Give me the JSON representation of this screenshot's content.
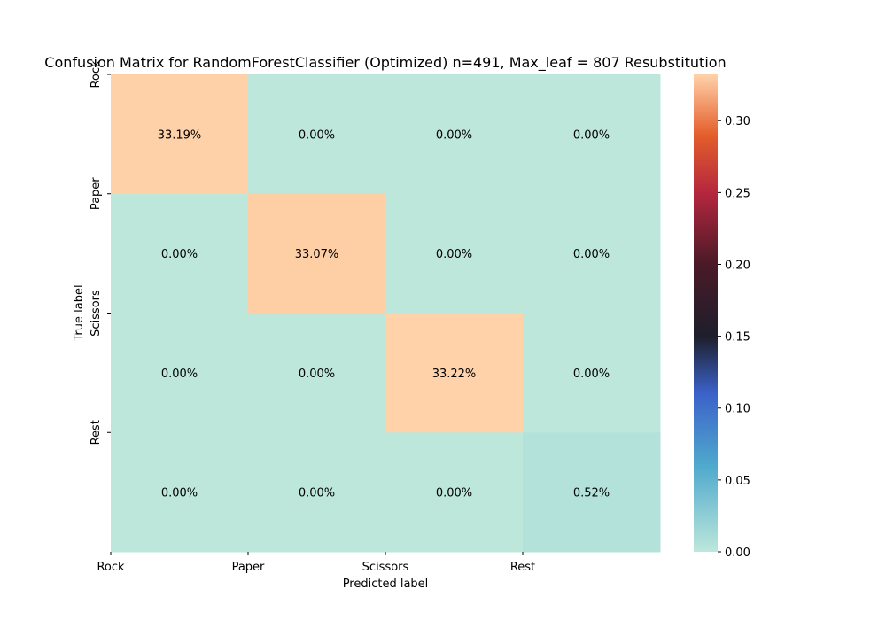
{
  "chart_data": {
    "type": "heatmap",
    "title": "Confusion Matrix for RandomForestClassifier (Optimized) n=491, Max_leaf = 807 Resubstitution",
    "xlabel": "Predicted label",
    "ylabel": "True label",
    "x_categories": [
      "Rock",
      "Paper",
      "Scissors",
      "Rest"
    ],
    "y_categories": [
      "Rock",
      "Paper",
      "Scissors",
      "Rest"
    ],
    "values": [
      [
        0.3319,
        0.0,
        0.0,
        0.0
      ],
      [
        0.0,
        0.3307,
        0.0,
        0.0
      ],
      [
        0.0,
        0.0,
        0.3322,
        0.0
      ],
      [
        0.0,
        0.0,
        0.0,
        0.0052
      ]
    ],
    "cell_labels": [
      [
        "33.19%",
        "0.00%",
        "0.00%",
        "0.00%"
      ],
      [
        "0.00%",
        "33.07%",
        "0.00%",
        "0.00%"
      ],
      [
        "0.00%",
        "0.00%",
        "33.22%",
        "0.00%"
      ],
      [
        "0.00%",
        "0.00%",
        "0.00%",
        "0.52%"
      ]
    ],
    "colorbar": {
      "range": [
        0.0,
        0.3322
      ],
      "ticks": [
        "0.00",
        "0.05",
        "0.10",
        "0.15",
        "0.20",
        "0.25",
        "0.30"
      ],
      "colormap": "icefire"
    },
    "colormap_stops": [
      {
        "v": 0.0,
        "color": "#bde7db"
      },
      {
        "v": 0.06,
        "color": "#4fa9cd"
      },
      {
        "v": 0.11,
        "color": "#3b62c9"
      },
      {
        "v": 0.15,
        "color": "#1e1e2c"
      },
      {
        "v": 0.2,
        "color": "#4a1a27"
      },
      {
        "v": 0.25,
        "color": "#b5273e"
      },
      {
        "v": 0.29,
        "color": "#e45e2b"
      },
      {
        "v": 0.3322,
        "color": "#ffd2aa"
      }
    ],
    "grid": false,
    "legend": "colorbar-right"
  }
}
